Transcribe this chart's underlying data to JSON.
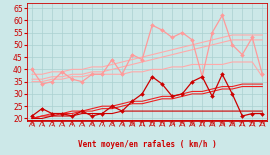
{
  "xlabel": "Vent moyen/en rafales ( km/h )",
  "bg_color": "#cce8e8",
  "grid_color": "#aad0d0",
  "ylim": [
    19,
    67
  ],
  "yticks": [
    20,
    25,
    30,
    35,
    40,
    45,
    50,
    55,
    60,
    65
  ],
  "series": [
    {
      "data": [
        40,
        34,
        35,
        39,
        36,
        35,
        38,
        38,
        44,
        38,
        46,
        44,
        58,
        56,
        53,
        55,
        52,
        37,
        55,
        62,
        50,
        46,
        53,
        38
      ],
      "color": "#ff9999",
      "lw": 0.9,
      "marker": "D",
      "ms": 2.0,
      "zorder": 3
    },
    {
      "data": [
        38,
        38,
        39,
        39,
        40,
        40,
        41,
        41,
        42,
        43,
        44,
        45,
        46,
        47,
        48,
        49,
        50,
        51,
        52,
        53,
        54,
        54,
        54,
        54
      ],
      "color": "#ffaaaa",
      "lw": 0.8,
      "marker": null,
      "ms": 0,
      "zorder": 2
    },
    {
      "data": [
        36,
        36,
        37,
        37,
        38,
        38,
        39,
        39,
        40,
        41,
        42,
        43,
        44,
        45,
        46,
        47,
        48,
        49,
        50,
        51,
        52,
        52,
        52,
        52
      ],
      "color": "#ffaaaa",
      "lw": 0.8,
      "marker": null,
      "ms": 0,
      "zorder": 2
    },
    {
      "data": [
        35,
        35,
        36,
        36,
        37,
        37,
        38,
        38,
        38,
        38,
        39,
        39,
        40,
        40,
        41,
        41,
        42,
        42,
        42,
        42,
        43,
        43,
        43,
        37
      ],
      "color": "#ffaaaa",
      "lw": 0.8,
      "marker": null,
      "ms": 0,
      "zorder": 2
    },
    {
      "data": [
        21,
        24,
        22,
        22,
        21,
        23,
        21,
        22,
        25,
        23,
        27,
        30,
        37,
        34,
        29,
        30,
        35,
        37,
        29,
        38,
        30,
        21,
        22,
        22
      ],
      "color": "#cc0000",
      "lw": 0.9,
      "marker": "D",
      "ms": 2.0,
      "zorder": 5
    },
    {
      "data": [
        20,
        21,
        22,
        22,
        23,
        23,
        24,
        25,
        25,
        26,
        27,
        27,
        28,
        29,
        29,
        30,
        31,
        31,
        32,
        33,
        33,
        34,
        34,
        34
      ],
      "color": "#ee2222",
      "lw": 0.8,
      "marker": null,
      "ms": 0,
      "zorder": 4
    },
    {
      "data": [
        20,
        21,
        21,
        22,
        22,
        23,
        23,
        24,
        24,
        25,
        26,
        26,
        27,
        28,
        28,
        29,
        30,
        30,
        31,
        32,
        32,
        33,
        33,
        33
      ],
      "color": "#ee2222",
      "lw": 0.8,
      "marker": null,
      "ms": 0,
      "zorder": 4
    },
    {
      "data": [
        20,
        20,
        21,
        21,
        21,
        22,
        22,
        22,
        22,
        23,
        23,
        23,
        23,
        23,
        23,
        23,
        23,
        23,
        23,
        23,
        23,
        23,
        23,
        23
      ],
      "color": "#cc0000",
      "lw": 0.8,
      "marker": null,
      "ms": 0,
      "zorder": 4
    }
  ],
  "x_labels": [
    "0",
    "1",
    "2",
    "3",
    "4",
    "5",
    "6",
    "7",
    "8",
    "9",
    "10",
    "11",
    "12",
    "13",
    "14",
    "15",
    "16",
    "17",
    "18",
    "19",
    "20",
    "21",
    "22",
    "23"
  ]
}
